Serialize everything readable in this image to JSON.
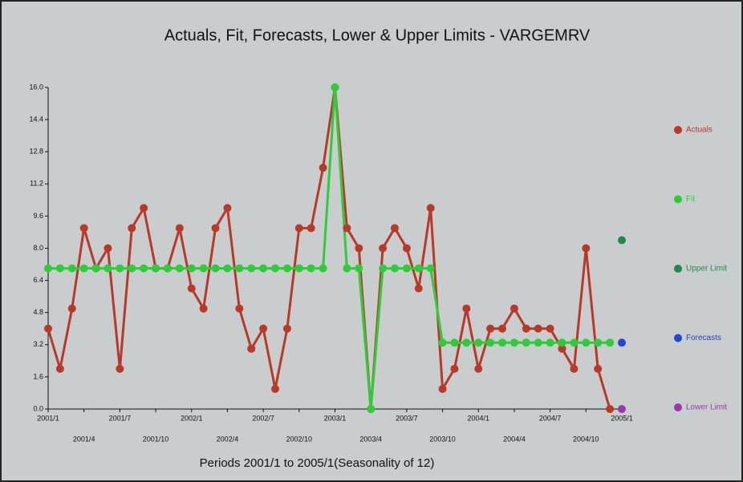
{
  "chart_data": {
    "type": "line",
    "title": "Actuals, Fit, Forecasts, Lower & Upper Limits - VARGEMRV",
    "x_label": "Periods 2001/1 to 2005/1(Seasonality of 12)",
    "categories": [
      "2001/1",
      null,
      null,
      "2001/4",
      null,
      null,
      "2001/7",
      null,
      null,
      "2001/10",
      null,
      null,
      "2002/1",
      null,
      null,
      "2002/4",
      null,
      null,
      "2002/7",
      null,
      null,
      "2002/10",
      null,
      null,
      "2003/1",
      null,
      null,
      "2003/4",
      null,
      null,
      "2003/7",
      null,
      null,
      "2003/10",
      null,
      null,
      "2004/1",
      null,
      null,
      "2004/4",
      null,
      null,
      "2004/7",
      null,
      null,
      "2004/10",
      null,
      null,
      "2005/1"
    ],
    "series": [
      {
        "name": "Actuals",
        "color": "#b8382a",
        "values": [
          4,
          2,
          5,
          9,
          7,
          8,
          2,
          9,
          10,
          7,
          7,
          9,
          6,
          5,
          9,
          10,
          5,
          3,
          4,
          1,
          4,
          9,
          9,
          12,
          16,
          9,
          8,
          0,
          8,
          9,
          8,
          6,
          10,
          1,
          2,
          5,
          2,
          4,
          4,
          5,
          4,
          4,
          4,
          3,
          2,
          8,
          2,
          0,
          null
        ]
      },
      {
        "name": "Fit",
        "color": "#2fcc3a",
        "values": [
          7,
          7,
          7,
          7,
          7,
          7,
          7,
          7,
          7,
          7,
          7,
          7,
          7,
          7,
          7,
          7,
          7,
          7,
          7,
          7,
          7,
          7,
          7,
          7,
          16,
          7,
          7,
          0,
          7,
          7,
          7,
          7,
          7,
          3.3,
          3.3,
          3.3,
          3.3,
          3.3,
          3.3,
          3.3,
          3.3,
          3.3,
          3.3,
          3.3,
          3.3,
          3.3,
          3.3,
          3.3,
          null
        ]
      },
      {
        "name": "Upper Limit",
        "color": "#1f8a4c",
        "values": [
          null,
          null,
          null,
          null,
          null,
          null,
          null,
          null,
          null,
          null,
          null,
          null,
          null,
          null,
          null,
          null,
          null,
          null,
          null,
          null,
          null,
          null,
          null,
          null,
          null,
          null,
          null,
          null,
          null,
          null,
          null,
          null,
          null,
          null,
          null,
          null,
          null,
          null,
          null,
          null,
          null,
          null,
          null,
          null,
          null,
          null,
          null,
          null,
          8.4
        ]
      },
      {
        "name": "Forecasts",
        "color": "#2447c8",
        "values": [
          null,
          null,
          null,
          null,
          null,
          null,
          null,
          null,
          null,
          null,
          null,
          null,
          null,
          null,
          null,
          null,
          null,
          null,
          null,
          null,
          null,
          null,
          null,
          null,
          null,
          null,
          null,
          null,
          null,
          null,
          null,
          null,
          null,
          null,
          null,
          null,
          null,
          null,
          null,
          null,
          null,
          null,
          null,
          null,
          null,
          null,
          null,
          null,
          3.3
        ]
      },
      {
        "name": "Lower Limit",
        "color": "#9a3aa8",
        "values": [
          null,
          null,
          null,
          null,
          null,
          null,
          null,
          null,
          null,
          null,
          null,
          null,
          null,
          null,
          null,
          null,
          null,
          null,
          null,
          null,
          null,
          null,
          null,
          null,
          null,
          null,
          null,
          null,
          null,
          null,
          null,
          null,
          null,
          null,
          null,
          null,
          null,
          null,
          null,
          null,
          null,
          null,
          null,
          null,
          null,
          null,
          null,
          null,
          0
        ]
      }
    ],
    "ylim": [
      0,
      16
    ],
    "yticks": [
      {
        "value": 0,
        "label": "0.0"
      },
      1.6,
      3.2,
      4.8,
      6.4,
      {
        "value": 8,
        "label": "8.0"
      },
      9.6,
      11.2,
      12.8,
      14.4,
      {
        "value": 16,
        "label": "16.0"
      }
    ],
    "grid": false,
    "legend": "right"
  }
}
